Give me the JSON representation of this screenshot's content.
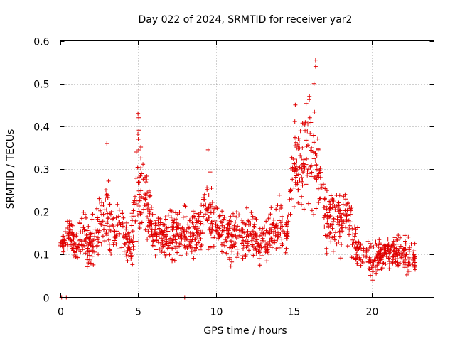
{
  "chart_data": {
    "type": "scatter",
    "title": "Day 022 of 2024, SRMTID for receiver yar2",
    "xlabel": "GPS time / hours",
    "ylabel": "SRMTID / TECUs",
    "xlim": [
      0,
      24
    ],
    "ylim": [
      0,
      0.6
    ],
    "x_ticks": [
      0,
      5,
      10,
      15,
      20
    ],
    "x_tick_labels": [
      "0",
      "5",
      "10",
      "15",
      "20"
    ],
    "y_ticks": [
      0,
      0.1,
      0.2,
      0.3,
      0.4,
      0.5,
      0.6
    ],
    "y_tick_labels": [
      "0",
      "0.1",
      "0.2",
      "0.3",
      "0.4",
      "0.5",
      "0.6"
    ],
    "grid": true,
    "marker": "plus",
    "color": "#e00000",
    "envelope_note": "Dense scatter; points regenerated along this estimated median/spread curve (hours, TECU).",
    "envelope": [
      {
        "x": 0.0,
        "median": 0.12,
        "spread": 0.01
      },
      {
        "x": 0.7,
        "median": 0.15,
        "spread": 0.05
      },
      {
        "x": 1.0,
        "median": 0.11,
        "spread": 0.03
      },
      {
        "x": 1.5,
        "median": 0.15,
        "spread": 0.05
      },
      {
        "x": 2.0,
        "median": 0.12,
        "spread": 0.06
      },
      {
        "x": 2.5,
        "median": 0.16,
        "spread": 0.06
      },
      {
        "x": 3.0,
        "median": 0.2,
        "spread": 0.1
      },
      {
        "x": 3.5,
        "median": 0.15,
        "spread": 0.07
      },
      {
        "x": 4.0,
        "median": 0.17,
        "spread": 0.07
      },
      {
        "x": 4.5,
        "median": 0.12,
        "spread": 0.05
      },
      {
        "x": 5.0,
        "median": 0.25,
        "spread": 0.15
      },
      {
        "x": 5.5,
        "median": 0.22,
        "spread": 0.1
      },
      {
        "x": 6.0,
        "median": 0.15,
        "spread": 0.05
      },
      {
        "x": 7.0,
        "median": 0.14,
        "spread": 0.06
      },
      {
        "x": 8.0,
        "median": 0.15,
        "spread": 0.06
      },
      {
        "x": 9.0,
        "median": 0.16,
        "spread": 0.07
      },
      {
        "x": 9.5,
        "median": 0.2,
        "spread": 0.1
      },
      {
        "x": 10.0,
        "median": 0.16,
        "spread": 0.06
      },
      {
        "x": 11.0,
        "median": 0.14,
        "spread": 0.06
      },
      {
        "x": 12.0,
        "median": 0.15,
        "spread": 0.06
      },
      {
        "x": 13.0,
        "median": 0.13,
        "spread": 0.05
      },
      {
        "x": 14.0,
        "median": 0.17,
        "spread": 0.07
      },
      {
        "x": 14.5,
        "median": 0.14,
        "spread": 0.04
      },
      {
        "x": 15.0,
        "median": 0.32,
        "spread": 0.12
      },
      {
        "x": 15.5,
        "median": 0.3,
        "spread": 0.12
      },
      {
        "x": 16.0,
        "median": 0.33,
        "spread": 0.14
      },
      {
        "x": 16.3,
        "median": 0.35,
        "spread": 0.15
      },
      {
        "x": 16.7,
        "median": 0.25,
        "spread": 0.12
      },
      {
        "x": 17.0,
        "median": 0.2,
        "spread": 0.09
      },
      {
        "x": 18.0,
        "median": 0.18,
        "spread": 0.08
      },
      {
        "x": 18.5,
        "median": 0.2,
        "spread": 0.09
      },
      {
        "x": 19.0,
        "median": 0.12,
        "spread": 0.05
      },
      {
        "x": 20.0,
        "median": 0.08,
        "spread": 0.04
      },
      {
        "x": 21.0,
        "median": 0.11,
        "spread": 0.04
      },
      {
        "x": 22.0,
        "median": 0.1,
        "spread": 0.05
      },
      {
        "x": 22.8,
        "median": 0.09,
        "spread": 0.04
      }
    ],
    "notable_points": [
      {
        "x": 0.1,
        "y": 0.0
      },
      {
        "x": 0.4,
        "y": 0.0
      },
      {
        "x": 0.5,
        "y": 0.0
      },
      {
        "x": 8.0,
        "y": 0.0
      },
      {
        "x": 16.4,
        "y": 0.555
      },
      {
        "x": 16.4,
        "y": 0.54
      },
      {
        "x": 16.3,
        "y": 0.5
      },
      {
        "x": 5.0,
        "y": 0.43
      },
      {
        "x": 5.05,
        "y": 0.42
      },
      {
        "x": 9.5,
        "y": 0.345
      },
      {
        "x": 3.0,
        "y": 0.36
      },
      {
        "x": 15.1,
        "y": 0.45
      },
      {
        "x": 16.0,
        "y": 0.47
      }
    ]
  }
}
